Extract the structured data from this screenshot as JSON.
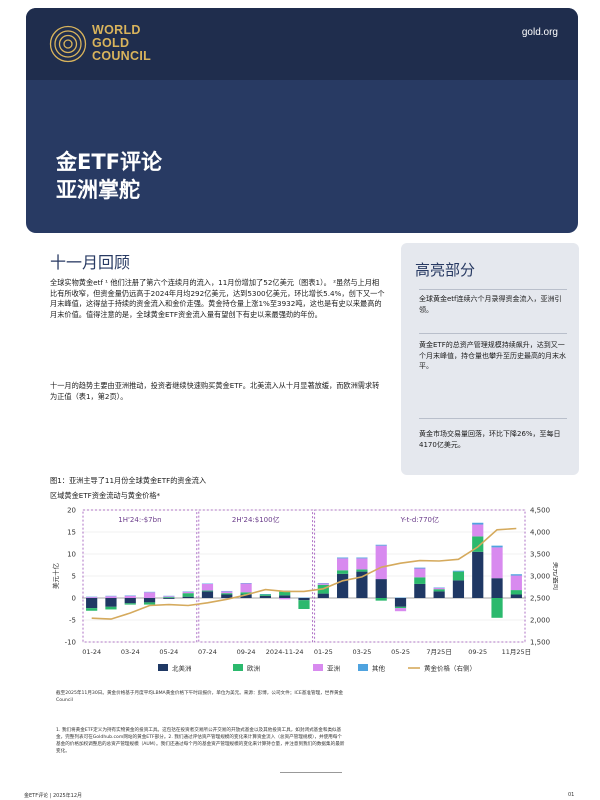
{
  "header": {
    "logo_lines": [
      "WORLD",
      "GOLD",
      "COUNCIL"
    ],
    "site": "gold.org",
    "title": "金ETF评论",
    "subtitle": "亚洲掌舵"
  },
  "main": {
    "section_title": "十一月回顾",
    "para1": "全球实物黄金etf ¹ 他们注册了第六个连续月的流入，11月份增加了52亿美元（图表1）。 ²虽然与上月相比有所收窄，但资金量仍远高于2024年月均292亿美元，达到5300亿美元，环比增长5.4%，创下又一个月末峰值，这得益于持续的资金流入和金价走强。黄金持仓量上涨1%至3932吨，这也是有史以来最高的月末价值。值得注意的是，全球黄金ETF资金流入量有望创下有史以来最强劲的年份。",
    "para2": "十一月的趋势主要由亚洲推动，投资者继续快速购买黄金ETF。北美流入从十月显著放缓，而欧洲需求转为正值（表1，第2页）。"
  },
  "sidebar": {
    "title": "高亮部分",
    "items": [
      "全球黄金etf连续六个月录得资金流入，亚洲引领。",
      "黄金ETF的总资产管理规模持续飙升，达到又一个月末峰值，持仓量也攀升至历史最高的月末水平。",
      "黄金市场交易量回落，环比下降26%，至每日4170亿美元。"
    ]
  },
  "figure": {
    "title": "图1：亚洲主导了11月份全球黄金ETF的资金流入",
    "subtitle": "区域黄金ETF资金流动与黄金价格*",
    "note": "截至2025年11月30日。黄金价格基于月度平均LBMA黄金价格下午时段报价，单位为美元。来源：彭博，公司文件；ICE基准管理，世界黄金 Council"
  },
  "chart_data": {
    "type": "bar",
    "title": "",
    "ylabel_left": "美元十亿",
    "ylabel_right": "美元/盎司",
    "ylim": [
      -10,
      20
    ],
    "y2lim": [
      1500,
      4500
    ],
    "yticks": [
      "20",
      "15",
      "10",
      "5",
      "0",
      "-5",
      "-10"
    ],
    "y2ticks": [
      "4,500",
      "4,000",
      "3,500",
      "3,000",
      "2,500",
      "2,000",
      "1,500"
    ],
    "xtick_labels": [
      "01-24",
      "03-24",
      "05-24",
      "07-24",
      "09-24",
      "2024-11-24",
      "01-25",
      "03-25",
      "05-25",
      "7月25日",
      "09-25",
      "11月25日"
    ],
    "periods": [
      {
        "label": "1H'24:-$7bn"
      },
      {
        "label": "2H'24:$100亿"
      },
      {
        "label": "Y-t-d:770亿"
      }
    ],
    "categories": [
      "01-24",
      "02-24",
      "03-24",
      "04-24",
      "05-24",
      "06-24",
      "07-24",
      "08-24",
      "09-24",
      "10-24",
      "11-24",
      "12-24",
      "01-25",
      "02-25",
      "03-25",
      "04-25",
      "05-25",
      "06-25",
      "07-25",
      "08-25",
      "09-25",
      "10-25",
      "11-25"
    ],
    "series": [
      {
        "name": "北美洲",
        "color": "#1f3864",
        "values": [
          -2.3,
          -2.0,
          -1.2,
          -1.0,
          -0.2,
          0.3,
          1.5,
          0.8,
          0.8,
          0.5,
          0.6,
          -0.5,
          1.0,
          5.5,
          6.0,
          4.3,
          -2.0,
          3.2,
          1.5,
          4.0,
          10.5,
          4.5,
          0.8
        ]
      },
      {
        "name": "欧洲",
        "color": "#2bb96d",
        "values": [
          -0.6,
          -0.6,
          -0.3,
          -0.5,
          0.2,
          0.8,
          0.2,
          0.3,
          0.5,
          0.3,
          1.0,
          -2.0,
          2.0,
          0.8,
          0.5,
          -0.6,
          -0.3,
          1.5,
          0.5,
          2.0,
          3.5,
          -4.5,
          1.0
        ]
      },
      {
        "name": "亚洲",
        "color": "#d88aef",
        "values": [
          0.2,
          0.4,
          0.5,
          1.3,
          0.2,
          0.3,
          1.5,
          0.4,
          2.0,
          0.0,
          -0.3,
          0.0,
          0.3,
          2.7,
          2.5,
          7.6,
          -0.7,
          2.0,
          0.3,
          0.0,
          2.7,
          7.0,
          3.3
        ]
      },
      {
        "name": "其他",
        "color": "#4fa3df",
        "values": [
          0.1,
          0.1,
          0.1,
          0.1,
          0.1,
          0.1,
          0.1,
          0.1,
          0.1,
          0.1,
          0.1,
          0.1,
          0.1,
          0.2,
          0.2,
          0.2,
          0.1,
          0.2,
          0.1,
          0.2,
          0.4,
          0.4,
          0.3
        ]
      }
    ],
    "line": {
      "name": "黄金价格（右侧）",
      "color": "#d5aa5d",
      "values": [
        2040,
        2020,
        2160,
        2330,
        2350,
        2330,
        2390,
        2470,
        2570,
        2690,
        2650,
        2650,
        2710,
        2890,
        2980,
        3200,
        3290,
        3350,
        3340,
        3380,
        3660,
        4050,
        4080
      ]
    },
    "legend_position": "bottom"
  },
  "footnote": "1. 我们将黄金ETF定义为持有实物黄金的投资工具。这包括在投资者交易所公开交易的开放式基金以及其他投资工具，如封闭式基金和类似基金，完整列表可在Goldhub.com网站的黄金ETF部分。2. 我们通过评估资产管理规模的变化来计算资金流入（总资产管理规模），并使用每个基金的价格加权调整后的总资产管理规模（AUM）。我们还通过每个月的基金资产管理规模的变化来计算持仓量，并注意到我们的数据集的最新变化。",
  "footer": {
    "left": "金ETF评论 | 2025年12月",
    "page": "01"
  }
}
